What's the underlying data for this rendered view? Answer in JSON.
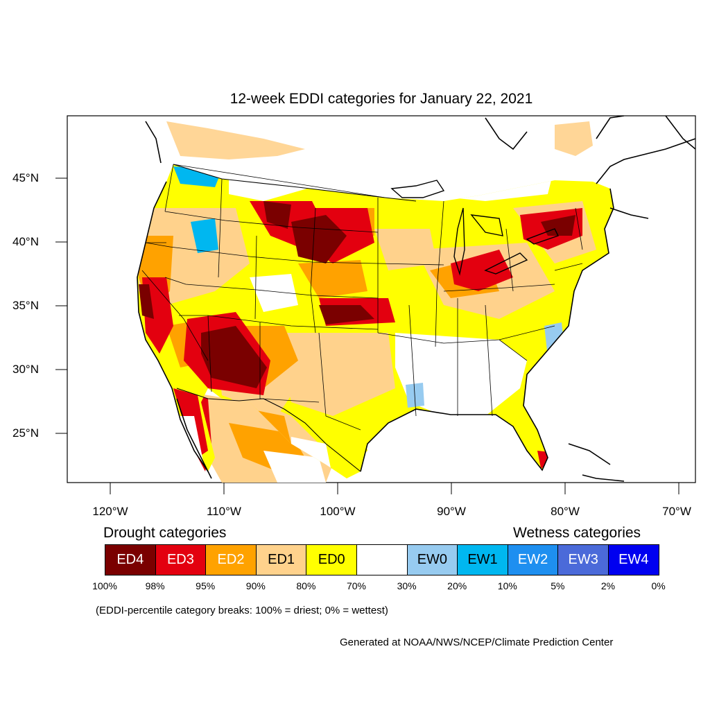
{
  "title": "12-week EDDI categories for January 22, 2021",
  "lat_labels": [
    "45°N",
    "40°N",
    "35°N",
    "30°N",
    "25°N"
  ],
  "lon_labels": [
    "120°W",
    "110°W",
    "100°W",
    "90°W",
    "80°W",
    "70°W"
  ],
  "legend": {
    "drought_heading": "Drought categories",
    "wetness_heading": "Wetness categories",
    "categories": [
      {
        "label": "ED4",
        "color": "#7a0000",
        "text_color": "#ffffff"
      },
      {
        "label": "ED3",
        "color": "#e3000f",
        "text_color": "#ffffff"
      },
      {
        "label": "ED2",
        "color": "#ffa200",
        "text_color": "#ffffff"
      },
      {
        "label": "ED1",
        "color": "#ffd28c",
        "text_color": "#000000"
      },
      {
        "label": "ED0",
        "color": "#ffff00",
        "text_color": "#000000"
      },
      {
        "label": "",
        "color": "#ffffff",
        "text_color": "#000000"
      },
      {
        "label": "EW0",
        "color": "#97cbf0",
        "text_color": "#000000"
      },
      {
        "label": "EW1",
        "color": "#00b7f0",
        "text_color": "#000000"
      },
      {
        "label": "EW2",
        "color": "#1e8ff0",
        "text_color": "#ffffff"
      },
      {
        "label": "EW3",
        "color": "#4b6ad9",
        "text_color": "#ffffff"
      },
      {
        "label": "EW4",
        "color": "#0000f0",
        "text_color": "#ffffff"
      }
    ],
    "breaks": [
      "100%",
      "98%",
      "95%",
      "90%",
      "80%",
      "70%",
      "30%",
      "20%",
      "10%",
      "5%",
      "2%",
      "0%"
    ]
  },
  "note": "(EDDI-percentile category breaks: 100% = driest; 0% = wettest)",
  "credit": "Generated at NOAA/NWS/NCEP/Climate Prediction Center"
}
